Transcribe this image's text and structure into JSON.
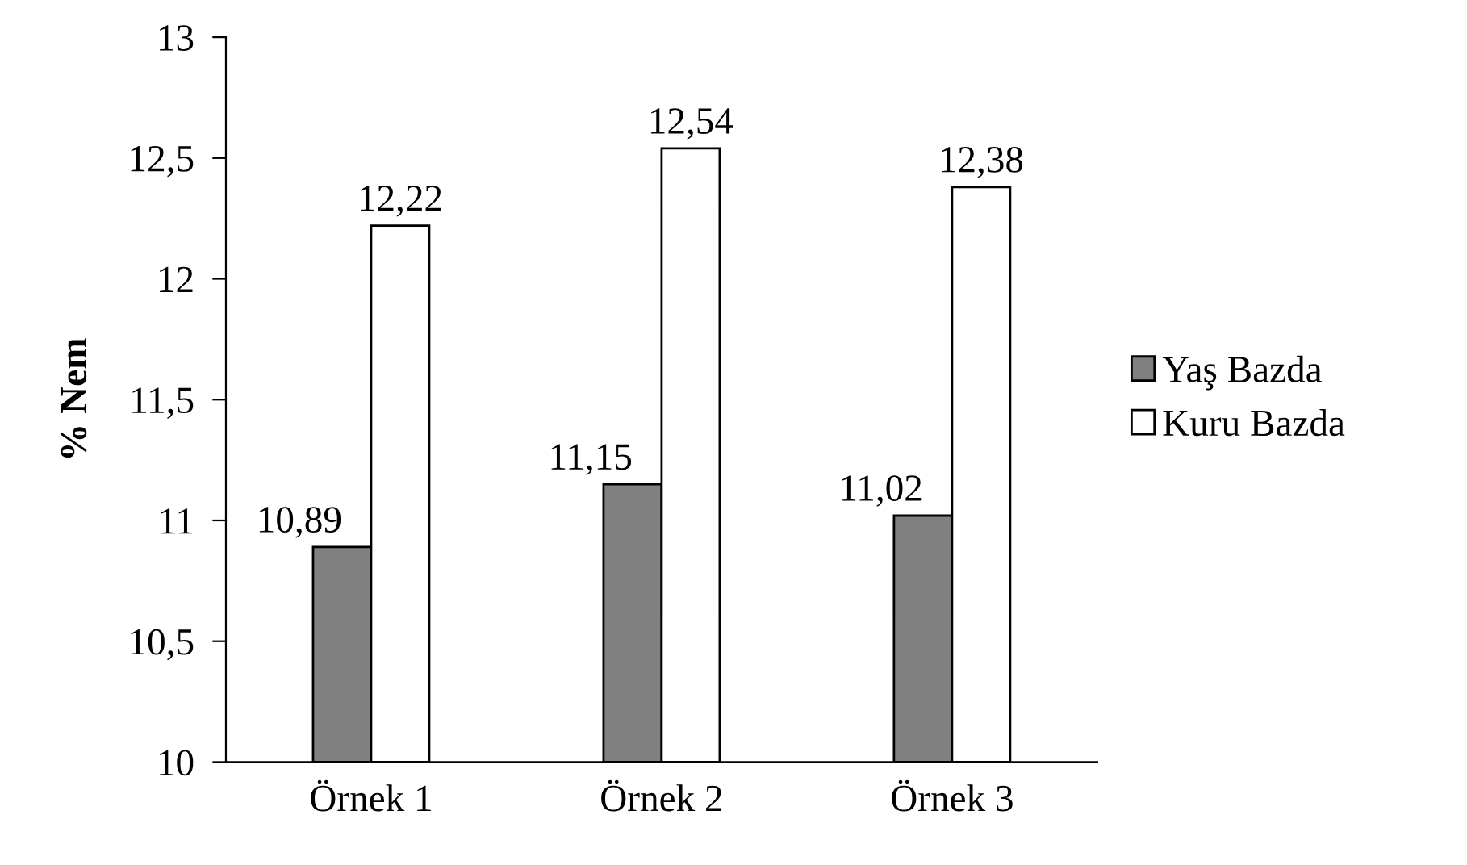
{
  "chart_data": {
    "type": "bar",
    "ylabel": "% Nem",
    "categories": [
      "Örnek 1",
      "Örnek 2",
      "Örnek 3"
    ],
    "series": [
      {
        "name": "Yaş Bazda",
        "color": "#808080",
        "values": [
          10.89,
          11.15,
          11.02
        ],
        "value_labels": [
          "10,89",
          "11,15",
          "11,02"
        ]
      },
      {
        "name": "Kuru Bazda",
        "color": "#ffffff",
        "values": [
          12.22,
          12.54,
          12.38
        ],
        "value_labels": [
          "12,22",
          "12,54",
          "12,38"
        ]
      }
    ],
    "ylim": [
      10,
      13
    ],
    "yticks": [
      10,
      {
        "value": 10.5,
        "label": "10,5"
      },
      11,
      {
        "value": 11.5,
        "label": "11,5"
      },
      12,
      {
        "value": 12.5,
        "label": "12,5"
      },
      13
    ],
    "grid": false,
    "legend": "right"
  }
}
